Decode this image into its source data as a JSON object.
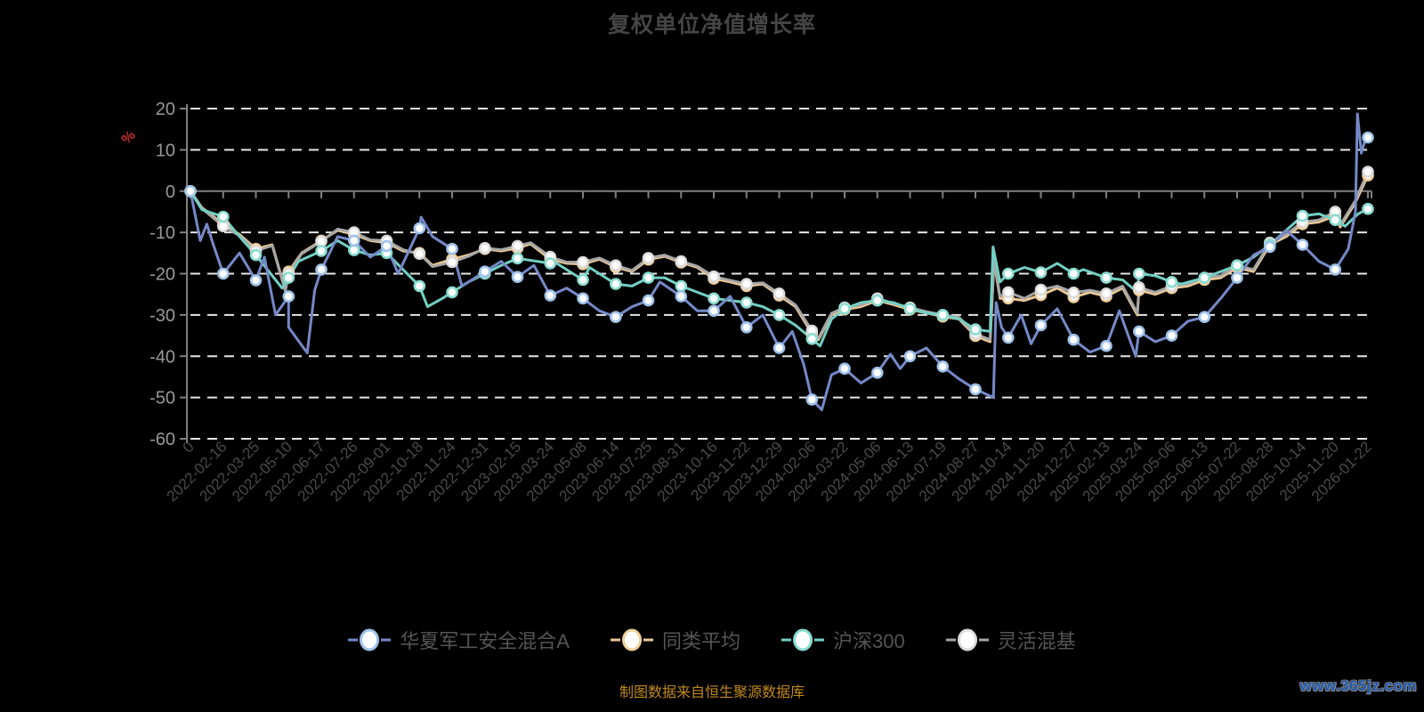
{
  "title": "复权单位净值增长率",
  "axis": {
    "y_unit": "%",
    "y_ticks": [
      20,
      10,
      0,
      -10,
      -20,
      -30,
      -40,
      -50,
      -60
    ],
    "y_max": 20,
    "y_min": -60,
    "x_labels": [
      "0",
      "2022-02-16",
      "2022-03-25",
      "2022-05-10",
      "2022-06-17",
      "2022-07-26",
      "2022-09-01",
      "2022-10-18",
      "2022-11-24",
      "2022-12-31",
      "2023-02-15",
      "2023-03-24",
      "2023-05-08",
      "2023-06-14",
      "2023-07-25",
      "2023-08-31",
      "2023-10-16",
      "2023-11-22",
      "2023-12-29",
      "2024-02-06",
      "2024-03-22",
      "2024-05-06",
      "2024-06-13",
      "2024-07-19",
      "2024-08-27",
      "2024-10-14",
      "2024-11-20",
      "2024-12-27",
      "2025-02-13",
      "2025-03-24",
      "2025-05-06",
      "2025-06-13",
      "2025-07-22",
      "2025-08-28",
      "2025-10-14",
      "2025-11-20",
      "2026-01-22"
    ]
  },
  "colors": {
    "background": "#000000",
    "title_text": "#454545",
    "axis_line": "#808080",
    "grid_dash": "#e6e6e6",
    "y_label_text": "#999999",
    "x_label_text": "#4a4a4a",
    "unit_label": "#c42a2a",
    "legend_text": "#555555",
    "footer_text": "#c0881c",
    "watermark_text": "#1f5bb5",
    "marker_fill": "#ffffff"
  },
  "footer": {
    "source_note": "制图数据来自恒生聚源数据库",
    "watermark": "www.365jz.com"
  },
  "chart_data": {
    "type": "line",
    "title": "复权单位净值增长率",
    "ylabel": "%",
    "ylim": [
      -60,
      20
    ],
    "grid": "dashed-horizontal",
    "legend_position": "bottom",
    "x_labels": [
      "0",
      "2022-02-16",
      "2022-03-25",
      "2022-05-10",
      "2022-06-17",
      "2022-07-26",
      "2022-09-01",
      "2022-10-18",
      "2022-11-24",
      "2022-12-31",
      "2023-02-15",
      "2023-03-24",
      "2023-05-08",
      "2023-06-14",
      "2023-07-25",
      "2023-08-31",
      "2023-10-16",
      "2023-11-22",
      "2023-12-29",
      "2024-02-06",
      "2024-03-22",
      "2024-05-06",
      "2024-06-13",
      "2024-07-19",
      "2024-08-27",
      "2024-10-14",
      "2024-11-20",
      "2024-12-27",
      "2025-02-13",
      "2025-03-24",
      "2025-05-06",
      "2025-06-13",
      "2025-07-22",
      "2025-08-28",
      "2025-10-14",
      "2025-11-20",
      "2026-01-22"
    ],
    "series": [
      {
        "key": "category-average",
        "name": "同类平均",
        "color": "#ecc995",
        "marker_ring": "#f0cf9a",
        "values": [
          0,
          -8,
          -14,
          -19.5,
          -12,
          -10.5,
          -12.5,
          -15,
          -16.5,
          -14,
          -13.8,
          -16.5,
          -17.7,
          -18.4,
          -16.6,
          -17.3,
          -21.2,
          -23,
          -25.3,
          -34.5,
          -28.7,
          -26.5,
          -28.7,
          -30.4,
          -35.1,
          -26,
          -25.2,
          -25.7,
          -25.5,
          -24,
          -23.5,
          -21.5,
          -18.5,
          -13,
          -8,
          -6,
          3.8
        ],
        "extra_points": [
          [
            0.35,
            -4
          ],
          [
            1.5,
            -10.5
          ],
          [
            2.5,
            -13
          ],
          [
            2.9,
            -24
          ],
          [
            3.4,
            -15
          ],
          [
            4.5,
            -9.5
          ],
          [
            5.5,
            -12
          ],
          [
            6.5,
            -14.5
          ],
          [
            7.4,
            -18
          ],
          [
            8.5,
            -15.5
          ],
          [
            9.5,
            -14.5
          ],
          [
            10.4,
            -12.8
          ],
          [
            11.5,
            -17.5
          ],
          [
            12.5,
            -16.5
          ],
          [
            13.5,
            -19.5
          ],
          [
            14.5,
            -15.8
          ],
          [
            15.5,
            -18.5
          ],
          [
            16.5,
            -22
          ],
          [
            17.5,
            -22.5
          ],
          [
            18.5,
            -28
          ],
          [
            19.2,
            -36
          ],
          [
            19.6,
            -30
          ],
          [
            20.5,
            -28
          ],
          [
            21.5,
            -27.5
          ],
          [
            22.5,
            -29.5
          ],
          [
            23.5,
            -31
          ],
          [
            24.45,
            -36.5
          ],
          [
            24.57,
            -17
          ],
          [
            24.75,
            -26
          ],
          [
            25.5,
            -26.5
          ],
          [
            26.5,
            -23.5
          ],
          [
            27.5,
            -24.5
          ],
          [
            28.5,
            -23.5
          ],
          [
            28.95,
            -30
          ],
          [
            29.5,
            -25
          ],
          [
            30.5,
            -23
          ],
          [
            31.5,
            -21
          ],
          [
            32.5,
            -19.5
          ],
          [
            33.5,
            -11
          ],
          [
            34.5,
            -7.5
          ],
          [
            35.15,
            -8.7
          ],
          [
            35.6,
            -3
          ]
        ]
      },
      {
        "key": "flexible-mixed",
        "name": "灵活混基",
        "color": "#a6a6a6",
        "marker_ring": "#dcdcdc",
        "values": [
          0,
          -8.5,
          -14.5,
          -20,
          -12.2,
          -10,
          -12,
          -15.2,
          -17.2,
          -13.8,
          -13.3,
          -15.9,
          -17.2,
          -18,
          -16.2,
          -17,
          -20.7,
          -22.5,
          -24.8,
          -33.8,
          -28.2,
          -26,
          -28.2,
          -30,
          -34.6,
          -24.5,
          -23.9,
          -24.6,
          -24.8,
          -23.3,
          -23,
          -21,
          -18,
          -12.5,
          -7.5,
          -5,
          4.7
        ],
        "extra_points": [
          [
            0.35,
            -4.2
          ],
          [
            1.5,
            -10.8
          ],
          [
            2.5,
            -13.2
          ],
          [
            2.9,
            -24.3
          ],
          [
            3.4,
            -15.2
          ],
          [
            4.5,
            -9.2
          ],
          [
            5.5,
            -11.8
          ],
          [
            6.5,
            -14.2
          ],
          [
            7.4,
            -18.3
          ],
          [
            8.5,
            -15.8
          ],
          [
            9.5,
            -14.2
          ],
          [
            10.4,
            -12.5
          ],
          [
            11.5,
            -17.2
          ],
          [
            12.5,
            -16.2
          ],
          [
            13.5,
            -19.2
          ],
          [
            14.5,
            -15.5
          ],
          [
            15.5,
            -18.2
          ],
          [
            16.5,
            -21.6
          ],
          [
            17.5,
            -22.2
          ],
          [
            18.5,
            -27.6
          ],
          [
            19.2,
            -35.6
          ],
          [
            19.6,
            -29.6
          ],
          [
            20.5,
            -27.6
          ],
          [
            21.5,
            -27.2
          ],
          [
            22.5,
            -29.2
          ],
          [
            23.5,
            -30.6
          ],
          [
            24.45,
            -36
          ],
          [
            24.57,
            -16.5
          ],
          [
            24.75,
            -25.5
          ],
          [
            25.5,
            -26
          ],
          [
            26.5,
            -23
          ],
          [
            27.5,
            -24
          ],
          [
            28.5,
            -23
          ],
          [
            28.95,
            -29.5
          ],
          [
            29.5,
            -24.5
          ],
          [
            30.5,
            -22.5
          ],
          [
            31.5,
            -20.5
          ],
          [
            32.5,
            -19
          ],
          [
            33.5,
            -10.5
          ],
          [
            34.5,
            -7
          ],
          [
            35.15,
            -8.2
          ],
          [
            35.6,
            -2.5
          ]
        ]
      },
      {
        "key": "csi300",
        "name": "沪深300",
        "color": "#72cfc3",
        "marker_ring": "#8adbd0",
        "values": [
          0,
          -6.2,
          -15.5,
          -21,
          -14.5,
          -14.3,
          -15,
          -23,
          -24.5,
          -20,
          -16.3,
          -17.5,
          -21.5,
          -22.5,
          -21,
          -23,
          -26,
          -27,
          -30,
          -35.8,
          -28.5,
          -26.5,
          -28.5,
          -30,
          -33.5,
          -20,
          -19.7,
          -20,
          -21,
          -20,
          -22,
          -21,
          -18,
          -13,
          -6,
          -7,
          -4.3
        ],
        "extra_points": [
          [
            0.35,
            -4.5
          ],
          [
            1.5,
            -11
          ],
          [
            2.8,
            -23.5
          ],
          [
            3.3,
            -17
          ],
          [
            4.5,
            -12
          ],
          [
            5.5,
            -15.5
          ],
          [
            6.5,
            -19
          ],
          [
            7.25,
            -28
          ],
          [
            7.7,
            -26
          ],
          [
            8.5,
            -22
          ],
          [
            9.5,
            -18
          ],
          [
            11,
            -16.5
          ],
          [
            12.2,
            -18.5
          ],
          [
            13.5,
            -23
          ],
          [
            14.5,
            -21
          ],
          [
            15.5,
            -24.5
          ],
          [
            16.5,
            -26.5
          ],
          [
            17.5,
            -28
          ],
          [
            18.5,
            -32.5
          ],
          [
            19.25,
            -37.5
          ],
          [
            19.6,
            -31
          ],
          [
            20.5,
            -27
          ],
          [
            21.5,
            -27
          ],
          [
            22.5,
            -29.5
          ],
          [
            23.5,
            -31
          ],
          [
            24.45,
            -34
          ],
          [
            24.54,
            -13.5
          ],
          [
            24.75,
            -22
          ],
          [
            25.5,
            -18.5
          ],
          [
            26.5,
            -17.5
          ],
          [
            27.3,
            -19
          ],
          [
            28.5,
            -21.5
          ],
          [
            28.95,
            -24.5
          ],
          [
            29.5,
            -20.5
          ],
          [
            30.3,
            -22.5
          ],
          [
            31.5,
            -19.5
          ],
          [
            32.5,
            -16
          ],
          [
            33.5,
            -9.5
          ],
          [
            34.5,
            -5.5
          ],
          [
            35.3,
            -8.5
          ],
          [
            35.7,
            -5.5
          ]
        ]
      },
      {
        "key": "fund",
        "name": "华夏军工安全混合A",
        "color": "#7589c8",
        "marker_ring": "#9fc2ea",
        "values": [
          0,
          -20,
          -21.6,
          -25.5,
          -19,
          -12,
          -13.3,
          -9,
          -14,
          -19.5,
          -20.8,
          -25.3,
          -26,
          -30.5,
          -26.5,
          -25.5,
          -29,
          -33,
          -38,
          -50.5,
          -43,
          -44,
          -40,
          -42.5,
          -48,
          -35.5,
          -32.5,
          -36,
          -37.5,
          -34,
          -35,
          -30.5,
          -21,
          -13.5,
          -13,
          -19,
          13
        ],
        "extra_points": [
          [
            0.3,
            -12
          ],
          [
            0.5,
            -8
          ],
          [
            0.7,
            -13
          ],
          [
            1.5,
            -15
          ],
          [
            2.26,
            -16
          ],
          [
            2.6,
            -30
          ],
          [
            3.0,
            -33
          ],
          [
            3.57,
            -39.2
          ],
          [
            3.8,
            -24
          ],
          [
            4.5,
            -11
          ],
          [
            5.5,
            -16
          ],
          [
            6.35,
            -20
          ],
          [
            7.05,
            -6.3
          ],
          [
            7.4,
            -11
          ],
          [
            8.3,
            -23
          ],
          [
            9.5,
            -17
          ],
          [
            10.5,
            -18
          ],
          [
            11.5,
            -23.5
          ],
          [
            12.5,
            -29
          ],
          [
            13.5,
            -28
          ],
          [
            14.35,
            -22
          ],
          [
            15.5,
            -29
          ],
          [
            16.5,
            -25.5
          ],
          [
            17.5,
            -30
          ],
          [
            18.4,
            -34
          ],
          [
            18.75,
            -42
          ],
          [
            19.3,
            -53
          ],
          [
            19.6,
            -44.5
          ],
          [
            20.5,
            -46.5
          ],
          [
            21.4,
            -39.5
          ],
          [
            21.7,
            -43
          ],
          [
            22.5,
            -38
          ],
          [
            23.5,
            -45.5
          ],
          [
            24.55,
            -50
          ],
          [
            24.63,
            -27
          ],
          [
            24.8,
            -33
          ],
          [
            25.4,
            -30
          ],
          [
            25.7,
            -37
          ],
          [
            26.5,
            -28.5
          ],
          [
            27.5,
            -39
          ],
          [
            28.4,
            -29
          ],
          [
            28.9,
            -40
          ],
          [
            29.5,
            -36.5
          ],
          [
            30.5,
            -31.5
          ],
          [
            31.5,
            -26
          ],
          [
            32.5,
            -15.5
          ],
          [
            33.5,
            -9.5
          ],
          [
            34.5,
            -17
          ],
          [
            35.4,
            -14
          ],
          [
            35.62,
            -5
          ],
          [
            35.68,
            18.7
          ],
          [
            35.8,
            9.2
          ],
          [
            35.9,
            12
          ]
        ]
      }
    ]
  }
}
